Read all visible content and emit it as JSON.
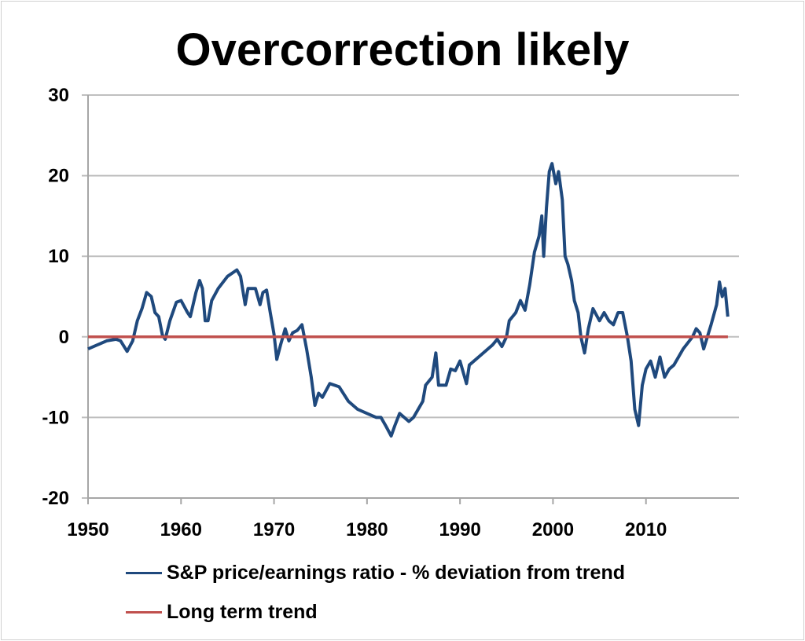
{
  "chart_data": {
    "type": "line",
    "title": "Overcorrection likely",
    "xlabel": "",
    "ylabel": "",
    "xlim": [
      1950,
      2020
    ],
    "ylim": [
      -20,
      30
    ],
    "x_ticks": [
      "1950",
      "1960",
      "1970",
      "1980",
      "1990",
      "2000",
      "2010"
    ],
    "y_ticks": [
      "30",
      "20",
      "10",
      "0",
      "-10",
      "-20"
    ],
    "grid": "horizontal",
    "legend_position": "bottom",
    "series": [
      {
        "name": "S&P price/earnings ratio - % deviation from trend",
        "color": "#1f497d",
        "points": [
          [
            1950,
            -1.5
          ],
          [
            1951,
            -1
          ],
          [
            1952,
            -0.5
          ],
          [
            1953,
            -0.3
          ],
          [
            1953.5,
            -0.5
          ],
          [
            1954.2,
            -1.8
          ],
          [
            1954.8,
            -0.5
          ],
          [
            1955.3,
            2
          ],
          [
            1955.8,
            3.5
          ],
          [
            1956.3,
            5.5
          ],
          [
            1956.8,
            5
          ],
          [
            1957.2,
            3
          ],
          [
            1957.6,
            2.5
          ],
          [
            1958,
            0.2
          ],
          [
            1958.3,
            -0.3
          ],
          [
            1958.8,
            2
          ],
          [
            1959.5,
            4.3
          ],
          [
            1960,
            4.5
          ],
          [
            1960.7,
            3
          ],
          [
            1961,
            2.5
          ],
          [
            1961.6,
            5.5
          ],
          [
            1962,
            7
          ],
          [
            1962.3,
            6
          ],
          [
            1962.6,
            2
          ],
          [
            1962.9,
            2
          ],
          [
            1963.3,
            4.5
          ],
          [
            1964,
            6
          ],
          [
            1965,
            7.5
          ],
          [
            1966,
            8.3
          ],
          [
            1966.4,
            7.5
          ],
          [
            1966.9,
            4
          ],
          [
            1967.2,
            6
          ],
          [
            1968,
            6
          ],
          [
            1968.5,
            4
          ],
          [
            1968.8,
            5.5
          ],
          [
            1969.2,
            5.8
          ],
          [
            1969.6,
            3
          ],
          [
            1970,
            0.3
          ],
          [
            1970.3,
            -2.8
          ],
          [
            1970.7,
            -1
          ],
          [
            1971.2,
            1
          ],
          [
            1971.6,
            -0.5
          ],
          [
            1972,
            0.5
          ],
          [
            1972.5,
            0.8
          ],
          [
            1973,
            1.5
          ],
          [
            1973.5,
            -1.5
          ],
          [
            1974,
            -5
          ],
          [
            1974.4,
            -8.5
          ],
          [
            1974.8,
            -7
          ],
          [
            1975.2,
            -7.5
          ],
          [
            1976,
            -5.8
          ],
          [
            1977,
            -6.2
          ],
          [
            1978,
            -8
          ],
          [
            1979,
            -9
          ],
          [
            1980,
            -9.5
          ],
          [
            1981,
            -10
          ],
          [
            1981.5,
            -10
          ],
          [
            1982,
            -11
          ],
          [
            1982.6,
            -12.3
          ],
          [
            1983,
            -11
          ],
          [
            1983.5,
            -9.5
          ],
          [
            1984,
            -10
          ],
          [
            1984.5,
            -10.5
          ],
          [
            1985,
            -10
          ],
          [
            1985.5,
            -9
          ],
          [
            1986,
            -8
          ],
          [
            1986.3,
            -6
          ],
          [
            1987,
            -5
          ],
          [
            1987.4,
            -2
          ],
          [
            1987.7,
            -6
          ],
          [
            1988.5,
            -6
          ],
          [
            1989,
            -4
          ],
          [
            1989.5,
            -4.2
          ],
          [
            1990,
            -3
          ],
          [
            1990.7,
            -5.8
          ],
          [
            1991,
            -3.5
          ],
          [
            1992,
            -2.5
          ],
          [
            1992.8,
            -1.7
          ],
          [
            1993.5,
            -1
          ],
          [
            1994,
            -0.3
          ],
          [
            1994.5,
            -1.2
          ],
          [
            1995,
            0
          ],
          [
            1995.3,
            2
          ],
          [
            1996,
            3
          ],
          [
            1996.5,
            4.5
          ],
          [
            1997,
            3.3
          ],
          [
            1997.5,
            6.5
          ],
          [
            1998,
            10.5
          ],
          [
            1998.5,
            12.5
          ],
          [
            1998.8,
            15
          ],
          [
            1999,
            10
          ],
          [
            1999.3,
            16
          ],
          [
            1999.6,
            20.5
          ],
          [
            1999.9,
            21.5
          ],
          [
            2000.3,
            19
          ],
          [
            2000.6,
            20.5
          ],
          [
            2001,
            17
          ],
          [
            2001.3,
            10
          ],
          [
            2001.6,
            9
          ],
          [
            2002,
            7
          ],
          [
            2002.3,
            4.5
          ],
          [
            2002.7,
            3
          ],
          [
            2003,
            0
          ],
          [
            2003.4,
            -2
          ],
          [
            2003.8,
            1
          ],
          [
            2004.3,
            3.5
          ],
          [
            2005,
            2
          ],
          [
            2005.5,
            3
          ],
          [
            2006,
            2
          ],
          [
            2006.5,
            1.5
          ],
          [
            2007,
            3
          ],
          [
            2007.5,
            3
          ],
          [
            2008,
            0
          ],
          [
            2008.4,
            -3
          ],
          [
            2008.8,
            -9
          ],
          [
            2009.2,
            -11
          ],
          [
            2009.6,
            -6
          ],
          [
            2010,
            -4
          ],
          [
            2010.5,
            -3
          ],
          [
            2011,
            -5
          ],
          [
            2011.5,
            -2.5
          ],
          [
            2012,
            -5
          ],
          [
            2012.5,
            -4
          ],
          [
            2013,
            -3.5
          ],
          [
            2014,
            -1.5
          ],
          [
            2015,
            0
          ],
          [
            2015.4,
            1
          ],
          [
            2015.8,
            0.5
          ],
          [
            2016.2,
            -1.5
          ],
          [
            2016.6,
            0
          ],
          [
            2017,
            1.5
          ],
          [
            2017.6,
            4
          ],
          [
            2017.9,
            6.8
          ],
          [
            2018.2,
            5
          ],
          [
            2018.5,
            6
          ],
          [
            2018.8,
            2.5
          ]
        ]
      },
      {
        "name": "Long term trend",
        "color": "#c0504d",
        "points": [
          [
            1950,
            0
          ],
          [
            2018.8,
            0
          ]
        ]
      }
    ]
  }
}
